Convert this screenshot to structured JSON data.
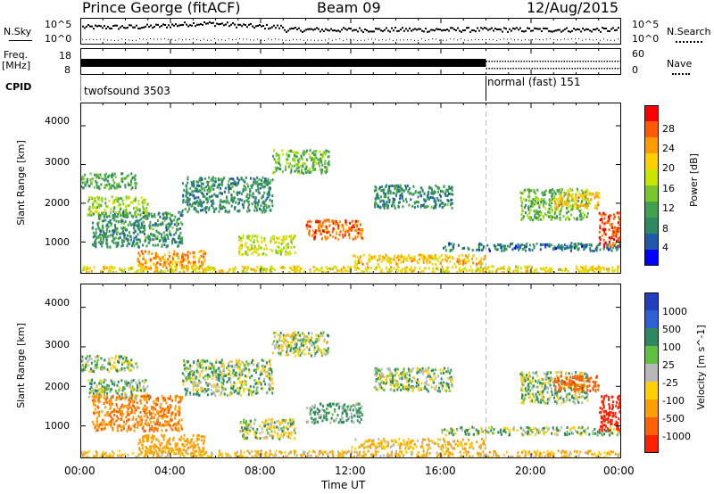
{
  "header": {
    "station": "Prince George (fitACF)",
    "beam": "Beam 09",
    "date": "12/Aug/2015"
  },
  "nsky_panel": {
    "label": "N.Sky",
    "left_ticks": [
      "10^5",
      "10^0"
    ],
    "right_ticks": [
      "10^5",
      "10^0"
    ],
    "right_label": "N.Search"
  },
  "freq_panel": {
    "label_line1": "Freq.",
    "label_line2": "[MHz]",
    "left_ticks": [
      "18",
      "8"
    ],
    "right_ticks": [
      "60",
      "0"
    ],
    "right_label": "Nave"
  },
  "cpid_panel": {
    "label": "CPID",
    "mode1": "twofsound 3503",
    "mode2": "normal (fast) 151"
  },
  "power_panel": {
    "ylabel": "Slant Range [km]",
    "yticks": [
      "4000",
      "3000",
      "2000",
      "1000"
    ],
    "colorbar_label": "Power [dB]",
    "colorbar_ticks": [
      "28",
      "24",
      "20",
      "16",
      "12",
      "8",
      "4"
    ],
    "colorbar_colors": [
      "#ff0000",
      "#ff5a00",
      "#ff9a00",
      "#ffd000",
      "#c8e600",
      "#78c828",
      "#3fa050",
      "#2b8a64",
      "#1f5aa8",
      "#0000ff"
    ]
  },
  "velocity_panel": {
    "ylabel": "Slant Range [km]",
    "yticks": [
      "4000",
      "3000",
      "2000",
      "1000"
    ],
    "colorbar_label": "Velocity [m s^-1]",
    "colorbar_ticks": [
      "1000",
      "500",
      "100",
      "25",
      "-25",
      "-100",
      "-500",
      "-1000"
    ],
    "colorbar_colors": [
      "#2040c0",
      "#3060d8",
      "#2c8a60",
      "#60c040",
      "#b8b8b8",
      "#ffd000",
      "#ffa000",
      "#ff6000",
      "#ff2000"
    ]
  },
  "x_axis": {
    "ticks": [
      "00:00",
      "04:00",
      "08:00",
      "12:00",
      "16:00",
      "20:00",
      "00:00"
    ],
    "label": "Time UT"
  },
  "chart_data": {
    "type": "heatmap",
    "title": "Prince George (fitACF)",
    "subtitle": "Beam 09",
    "date": "12/Aug/2015",
    "x_range_hours": [
      0,
      24
    ],
    "y_range_km": [
      180,
      4600
    ],
    "mode_change_hour": 18,
    "bands": [
      {
        "h0": 0.0,
        "h1": 2.5,
        "r0": 2400,
        "r1": 2800,
        "power": 12,
        "vel": 25
      },
      {
        "h0": 0.3,
        "h1": 3.0,
        "r0": 1700,
        "r1": 2200,
        "power": 16,
        "vel": 25
      },
      {
        "h0": 0.5,
        "h1": 4.5,
        "r0": 900,
        "r1": 1800,
        "power": 10,
        "vel": -400
      },
      {
        "h0": 2.5,
        "h1": 5.5,
        "r0": 350,
        "r1": 800,
        "power": 24,
        "vel": -250
      },
      {
        "h0": 4.5,
        "h1": 8.5,
        "r0": 1800,
        "r1": 2700,
        "power": 10,
        "vel": 25
      },
      {
        "h0": 8.5,
        "h1": 11.0,
        "r0": 2800,
        "r1": 3400,
        "power": 14,
        "vel": 0
      },
      {
        "h0": 7.0,
        "h1": 9.5,
        "r0": 700,
        "r1": 1200,
        "power": 18,
        "vel": 0
      },
      {
        "h0": 10.0,
        "h1": 12.5,
        "r0": 1100,
        "r1": 1600,
        "power": 26,
        "vel": 100
      },
      {
        "h0": 13.0,
        "h1": 16.5,
        "r0": 1900,
        "r1": 2500,
        "power": 10,
        "vel": 25
      },
      {
        "h0": 12.0,
        "h1": 18.0,
        "r0": 450,
        "r1": 700,
        "power": 22,
        "vel": -100
      },
      {
        "h0": 16.0,
        "h1": 24.0,
        "r0": 800,
        "r1": 1000,
        "power": 8,
        "vel": 25
      },
      {
        "h0": 19.5,
        "h1": 22.5,
        "r0": 1600,
        "r1": 2400,
        "power": 14,
        "vel": 25
      },
      {
        "h0": 21.0,
        "h1": 23.0,
        "r0": 1900,
        "r1": 2300,
        "power": 22,
        "vel": -600
      },
      {
        "h0": 23.0,
        "h1": 24.0,
        "r0": 900,
        "r1": 1800,
        "power": 28,
        "vel": -900
      },
      {
        "h0": 0.0,
        "h1": 24.0,
        "r0": 180,
        "r1": 400,
        "power": 20,
        "vel": -100
      }
    ]
  }
}
